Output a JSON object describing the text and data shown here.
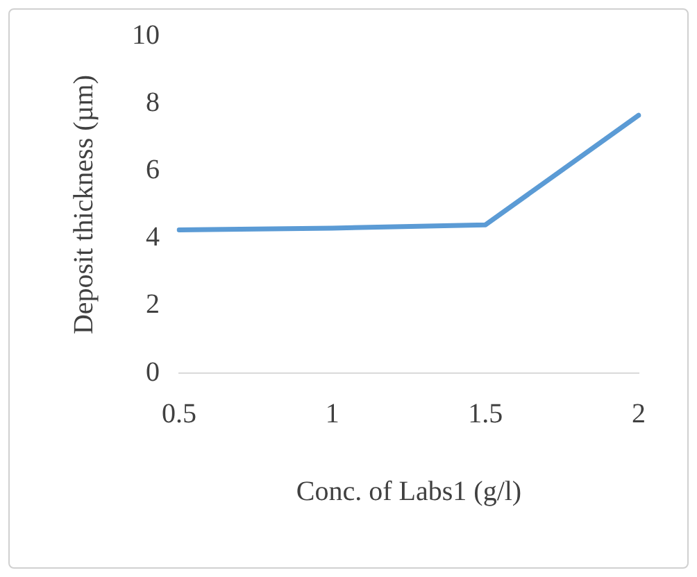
{
  "chart_data": {
    "type": "line",
    "xlabel": "Conc. of Labs1 (g/l)",
    "ylabel": "Deposit thickness (µm)",
    "categories": [
      "0.5",
      "1",
      "1.5",
      "2"
    ],
    "series": [
      {
        "color": "#5b9bd5",
        "values": [
          4.25,
          4.3,
          4.4,
          7.65
        ]
      }
    ],
    "ylim": [
      0,
      10
    ],
    "yticks": [
      0,
      2,
      4,
      6,
      8,
      10
    ],
    "grid": false,
    "legend": false,
    "marker": "none"
  }
}
